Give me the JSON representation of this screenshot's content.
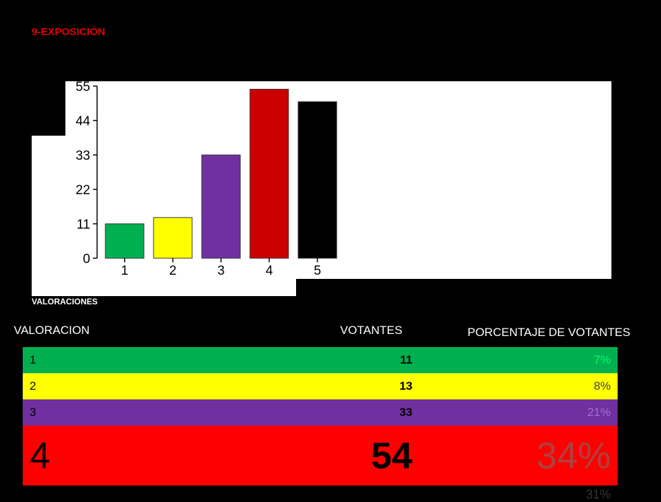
{
  "page_title": "9-EXPOSICIÓN",
  "chart_data": {
    "type": "bar",
    "categories": [
      "1",
      "2",
      "3",
      "4",
      "5"
    ],
    "values": [
      11,
      13,
      33,
      54,
      50
    ],
    "colors": [
      "#00b050",
      "#ffff00",
      "#7030a0",
      "#cc0000",
      "#000000"
    ],
    "yticks": [
      0,
      11,
      22,
      33,
      44,
      55
    ],
    "ylim": [
      0,
      55
    ],
    "xlabel": "VALORACIONES"
  },
  "table": {
    "headers": {
      "valoracion": "VALORACION",
      "votantes": "VOTANTES",
      "porcentaje": "PORCENTAJE DE  VOTANTES"
    },
    "rows": [
      {
        "valoracion": "1",
        "votantes": "11",
        "porcentaje": "7%",
        "bg": "#00b050",
        "fg": "#000000",
        "pct_fg": "#00ff66"
      },
      {
        "valoracion": "2",
        "votantes": "13",
        "porcentaje": "8%",
        "bg": "#ffff00",
        "fg": "#000000",
        "pct_fg": "#444444"
      },
      {
        "valoracion": "3",
        "votantes": "33",
        "porcentaje": "21%",
        "bg": "#7030a0",
        "fg": "#000000",
        "pct_fg": "#a070d0"
      },
      {
        "valoracion": "4",
        "votantes": "54",
        "porcentaje": "34%",
        "bg": "#ff0000",
        "fg": "#000000",
        "pct_fg": "#b04040"
      }
    ],
    "partial_row": {
      "porcentaje": "31%"
    }
  }
}
